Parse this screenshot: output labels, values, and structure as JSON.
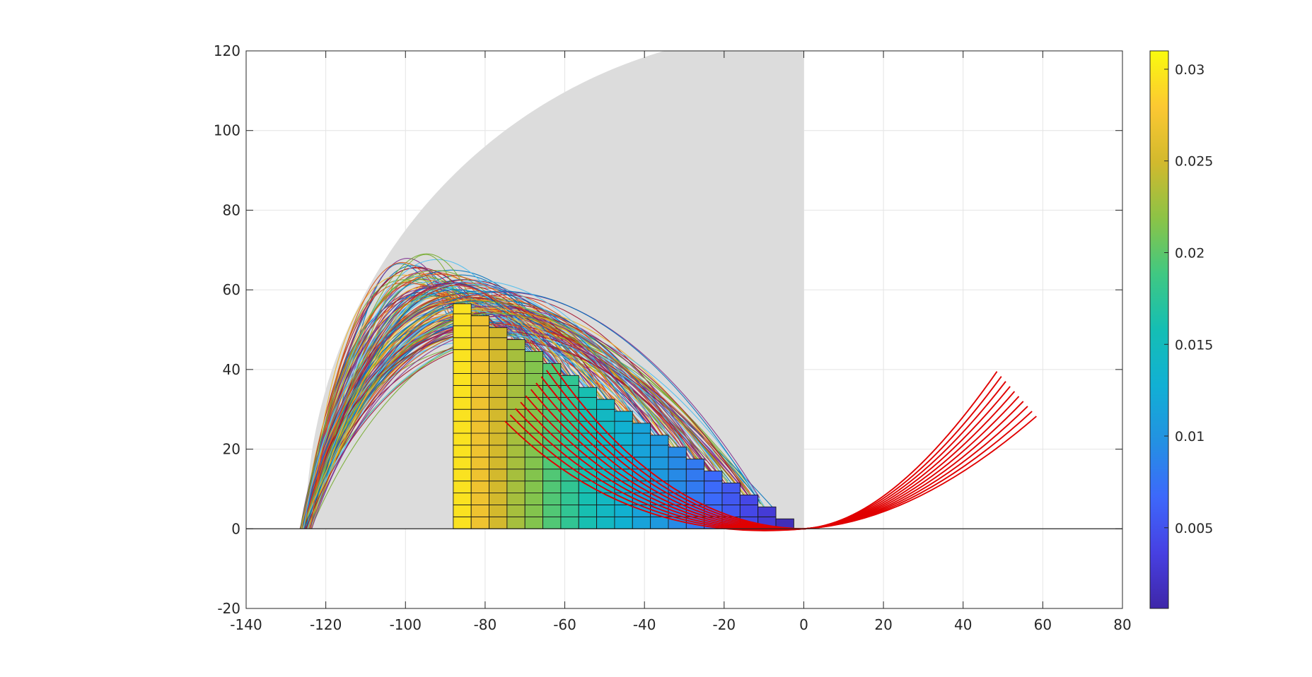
{
  "chart_data": {
    "type": "scatter",
    "title": "",
    "xlabel": "",
    "ylabel": "",
    "xlim": [
      -140,
      80
    ],
    "ylim": [
      -20,
      120
    ],
    "xticks": [
      "-140",
      "-120",
      "-100",
      "-80",
      "-60",
      "-40",
      "-20",
      "0",
      "20",
      "40",
      "60",
      "80"
    ],
    "yticks": [
      "-20",
      "0",
      "20",
      "40",
      "60",
      "80",
      "100",
      "120"
    ],
    "grid": true,
    "reachable_region": {
      "shape": "quarter-disc",
      "center": [
        0,
        0
      ],
      "radius": 125,
      "color": "#dcdcdc"
    },
    "heatmap_bars": {
      "x_start": -88,
      "cell_width": 4.5,
      "cell_height": 3.0,
      "heights": [
        56.5,
        53.5,
        50.5,
        47.5,
        44.5,
        41.5,
        38.5,
        35.5,
        32.5,
        29.5,
        26.5,
        23.5,
        20.5,
        17.5,
        14.5,
        11.5,
        8.5,
        5.5,
        2.5
      ],
      "values": [
        0.0295,
        0.027,
        0.025,
        0.023,
        0.0215,
        0.0195,
        0.0178,
        0.016,
        0.0145,
        0.013,
        0.0115,
        0.0105,
        0.0092,
        0.008,
        0.0068,
        0.0055,
        0.0042,
        0.003,
        0.0015
      ]
    },
    "red_curves": {
      "count": 10,
      "color": "#e00000"
    },
    "trajectory_bundle": {
      "count": 160,
      "start_x": -125
    },
    "colorbar": {
      "range": [
        0.0006,
        0.031
      ],
      "ticks": [
        0.005,
        0.01,
        0.015,
        0.02,
        0.025,
        0.03
      ],
      "tick_labels": [
        "0.005",
        "0.01",
        "0.015",
        "0.02",
        "0.025",
        "0.03"
      ]
    }
  }
}
